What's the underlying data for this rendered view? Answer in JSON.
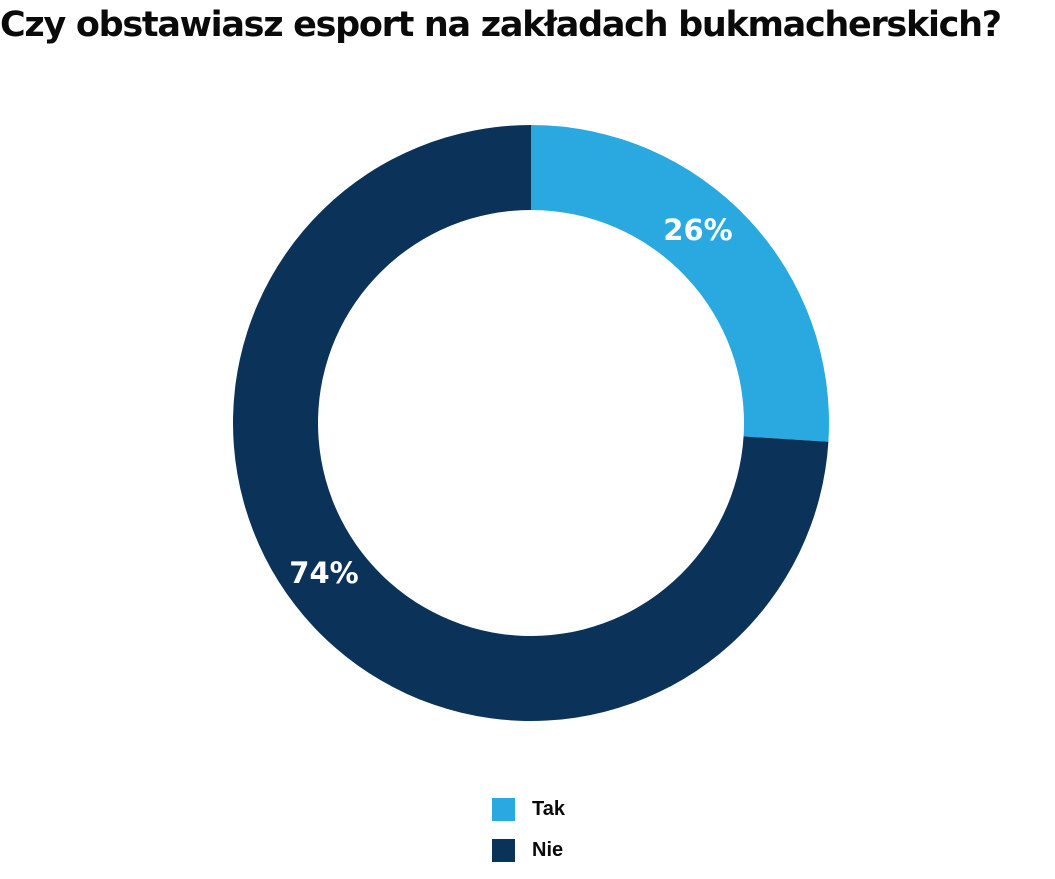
{
  "chart_data": {
    "type": "pie",
    "variant": "donut",
    "title": "Czy obstawiasz esport na zakładach bukmacherskich?",
    "categories": [
      "Tak",
      "Nie"
    ],
    "values": [
      26,
      74
    ],
    "value_labels": [
      "26%",
      "74%"
    ],
    "colors": [
      "#29a9e0",
      "#0b3259"
    ],
    "legend_position": "bottom-center"
  }
}
